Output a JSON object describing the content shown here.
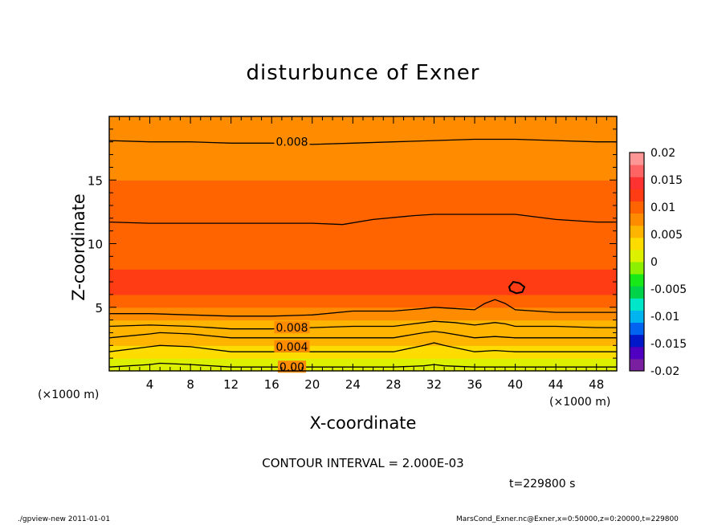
{
  "title": "disturbunce of Exner",
  "chart_data": {
    "type": "heatmap",
    "title": "disturbunce of Exner",
    "xlabel": "X-coordinate",
    "ylabel": "Z-coordinate",
    "x_unit": "(×1000 m)",
    "y_unit": "(×1000 m)",
    "xlim": [
      0,
      50
    ],
    "ylim": [
      0,
      20
    ],
    "xticks": [
      4,
      8,
      12,
      16,
      20,
      24,
      28,
      32,
      36,
      40,
      44,
      48
    ],
    "yticks": [
      5,
      10,
      15
    ],
    "colorbar": {
      "levels": [
        -0.02,
        -0.015,
        -0.01,
        -0.005,
        0,
        0.005,
        0.01,
        0.015,
        0.02
      ],
      "labels": [
        "-0.02",
        "-0.015",
        "-0.01",
        "-0.005",
        "0",
        "0.005",
        "0.01",
        "0.015",
        "0.02"
      ],
      "colors": [
        "#7a1fa0",
        "#5000c0",
        "#0018c8",
        "#0064f0",
        "#00b4f0",
        "#00e6c8",
        "#00d24a",
        "#18e818",
        "#8cf000",
        "#dcf000",
        "#ffdc00",
        "#ffb400",
        "#ff8c00",
        "#ff6400",
        "#ff3c14",
        "#ff3232",
        "#ff6464",
        "#ff9696"
      ]
    },
    "contour_interval": 0.002,
    "contour_labels": [
      "0.008",
      "0.008",
      "0.004",
      "0.00"
    ],
    "profile": {
      "z": [
        0,
        1,
        2,
        3,
        4,
        4.5,
        5,
        6,
        7,
        8,
        9,
        10,
        11,
        12,
        13,
        14,
        15,
        16,
        17,
        18,
        19,
        20
      ],
      "value": [
        0.002,
        0.004,
        0.005,
        0.006,
        0.007,
        0.008,
        0.0105,
        0.0115,
        0.0115,
        0.011,
        0.0105,
        0.0105,
        0.0102,
        0.0098,
        0.0095,
        0.0092,
        0.0088,
        0.0085,
        0.0082,
        0.008,
        0.0078,
        0.0076
      ]
    },
    "contours": [
      {
        "level": 0.002,
        "x": [
          0,
          4,
          5,
          8,
          12,
          16,
          20,
          24,
          28,
          31,
          32,
          33,
          36,
          38,
          40,
          44,
          48,
          50
        ],
        "z": [
          0.3,
          0.5,
          0.6,
          0.5,
          0.3,
          0.3,
          0.3,
          0.3,
          0.3,
          0.4,
          0.5,
          0.4,
          0.3,
          0.3,
          0.3,
          0.3,
          0.3,
          0.3
        ]
      },
      {
        "level": 0.004,
        "x": [
          0,
          4,
          5,
          8,
          12,
          16,
          20,
          24,
          28,
          31,
          32,
          33,
          36,
          38,
          40,
          44,
          48,
          50
        ],
        "z": [
          1.5,
          1.9,
          2.0,
          1.9,
          1.5,
          1.5,
          1.5,
          1.5,
          1.5,
          2.0,
          2.2,
          2.0,
          1.5,
          1.6,
          1.5,
          1.5,
          1.5,
          1.5
        ]
      },
      {
        "level": 0.006,
        "x": [
          0,
          4,
          5,
          8,
          12,
          16,
          20,
          24,
          28,
          31,
          32,
          33,
          36,
          38,
          40,
          44,
          48,
          50
        ],
        "z": [
          2.6,
          2.9,
          3.0,
          2.9,
          2.6,
          2.6,
          2.6,
          2.6,
          2.6,
          3.0,
          3.1,
          3.0,
          2.6,
          2.7,
          2.6,
          2.6,
          2.6,
          2.6
        ]
      },
      {
        "level": 0.008,
        "x": [
          0,
          4,
          8,
          12,
          16,
          20,
          24,
          28,
          31,
          32,
          34,
          36,
          38,
          39,
          40,
          44,
          48,
          50
        ],
        "z": [
          3.5,
          3.6,
          3.5,
          3.3,
          3.3,
          3.4,
          3.5,
          3.5,
          3.8,
          3.9,
          3.8,
          3.6,
          3.8,
          3.7,
          3.5,
          3.5,
          3.4,
          3.4
        ]
      },
      {
        "level": 0.01,
        "x": [
          0,
          4,
          8,
          12,
          16,
          20,
          24,
          28,
          31,
          32,
          34,
          36,
          37,
          38,
          39,
          40,
          44,
          48,
          50
        ],
        "z": [
          4.5,
          4.5,
          4.4,
          4.3,
          4.3,
          4.4,
          4.7,
          4.7,
          4.9,
          5.0,
          4.9,
          4.8,
          5.3,
          5.6,
          5.3,
          4.8,
          4.6,
          4.6,
          4.6
        ]
      },
      {
        "level": 0.01,
        "x": [
          0,
          4,
          8,
          12,
          16,
          20,
          23,
          26,
          30,
          32,
          36,
          40,
          44,
          48,
          50
        ],
        "z": [
          11.7,
          11.6,
          11.6,
          11.6,
          11.6,
          11.6,
          11.5,
          11.9,
          12.2,
          12.3,
          12.3,
          12.3,
          11.9,
          11.7,
          11.7
        ]
      },
      {
        "level": 0.008,
        "x": [
          0,
          4,
          8,
          12,
          16,
          20,
          24,
          28,
          32,
          36,
          40,
          44,
          48,
          50
        ],
        "z": [
          18.1,
          18.0,
          18.0,
          17.9,
          17.9,
          17.8,
          17.9,
          18.0,
          18.1,
          18.2,
          18.2,
          18.1,
          18.0,
          18.0
        ]
      },
      {
        "level": 0.012,
        "closed": true,
        "x": [
          39.4,
          39.8,
          40.4,
          40.9,
          40.7,
          40.1,
          39.5,
          39.4
        ],
        "z": [
          6.6,
          7.0,
          6.9,
          6.6,
          6.2,
          6.1,
          6.3,
          6.6
        ]
      }
    ]
  },
  "contour_interval_text": "CONTOUR INTERVAL = 2.000E-03",
  "time_text": "t=229800  s",
  "x_unit_left": "(×1000 m)",
  "x_unit_right": "(×1000 m)",
  "footer_left": "./gpview-new   2011-01-01",
  "footer_right": "MarsCond_Exner.nc@Exner,x=0:50000,z=0:20000,t=229800"
}
